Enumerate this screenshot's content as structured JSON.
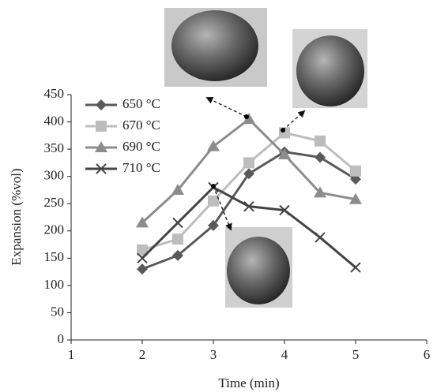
{
  "chart_data": {
    "type": "line",
    "x_label": "Time (min)",
    "y_label": "Expansion (%vol)",
    "x": [
      2,
      2.5,
      3,
      3.5,
      4,
      4.5,
      5
    ],
    "series": [
      {
        "name": "650 °C",
        "color": "#5a5a5a",
        "marker": "diamond",
        "values": [
          130,
          155,
          210,
          305,
          345,
          335,
          295
        ]
      },
      {
        "name": "670 °C",
        "color": "#bdbdbd",
        "marker": "square",
        "values": [
          165,
          185,
          255,
          325,
          380,
          365,
          310
        ]
      },
      {
        "name": "690 °C",
        "color": "#8c8c8c",
        "marker": "triangle",
        "values": [
          215,
          275,
          355,
          405,
          340,
          270,
          258
        ]
      },
      {
        "name": "710 °C",
        "color": "#444444",
        "marker": "cross",
        "values": [
          150,
          215,
          280,
          245,
          238,
          188,
          133
        ]
      }
    ],
    "xlim": [
      1,
      6
    ],
    "xticks": [
      1,
      2,
      3,
      4,
      5,
      6
    ],
    "ylim": [
      0,
      450
    ],
    "yticks": [
      0,
      50,
      100,
      150,
      200,
      250,
      300,
      350,
      400,
      450
    ],
    "legend": "top-left"
  }
}
